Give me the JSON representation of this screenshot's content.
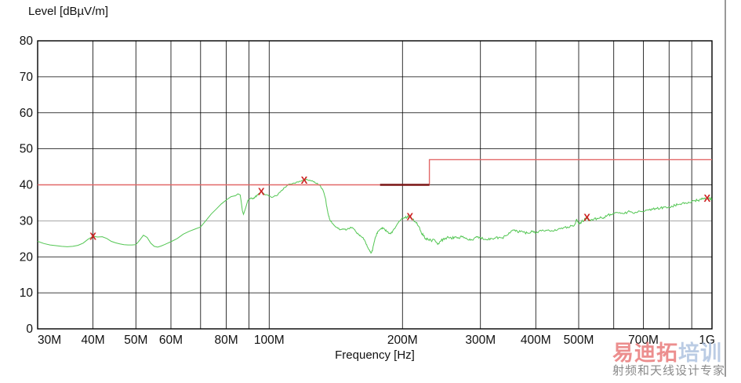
{
  "chart": {
    "y_axis_title": "Level [dBµV/m]",
    "x_axis_title": "Frequency [Hz]"
  },
  "axes": {
    "x": {
      "scale": "log",
      "unit": "MHz",
      "min": 30,
      "max": 1000,
      "ticks": [
        {
          "f": 30,
          "label": "30M"
        },
        {
          "f": 40,
          "label": "40M"
        },
        {
          "f": 50,
          "label": "50M"
        },
        {
          "f": 60,
          "label": "60M"
        },
        {
          "f": 80,
          "label": "80M"
        },
        {
          "f": 100,
          "label": "100M"
        },
        {
          "f": 200,
          "label": "200M"
        },
        {
          "f": 300,
          "label": "300M"
        },
        {
          "f": 400,
          "label": "400M"
        },
        {
          "f": 500,
          "label": "500M"
        },
        {
          "f": 700,
          "label": "700M"
        },
        {
          "f": 1000,
          "label": "1G"
        }
      ],
      "minor_gridlines": [
        70,
        90,
        600,
        800,
        900
      ]
    },
    "y": {
      "min": 0,
      "max": 80,
      "ticks": [
        {
          "v": 0,
          "label": "0"
        },
        {
          "v": 10,
          "label": "10"
        },
        {
          "v": 20,
          "label": "20"
        },
        {
          "v": 30,
          "label": "30"
        },
        {
          "v": 40,
          "label": "40"
        },
        {
          "v": 50,
          "label": "50"
        },
        {
          "v": 60,
          "label": "60"
        },
        {
          "v": 70,
          "label": "70"
        },
        {
          "v": 80,
          "label": "80"
        }
      ],
      "gray_gridline_value": 30
    }
  },
  "chart_data": {
    "type": "line",
    "title": "Level [dBµV/m]",
    "xlabel": "Frequency [Hz]",
    "ylabel": "Level [dBµV/m]",
    "x_scale": "log",
    "xlim_mhz": [
      30,
      1000
    ],
    "ylim": [
      0,
      80
    ],
    "grid": "on",
    "series": [
      {
        "name": "measured-emissions-trace",
        "color": "#53c653",
        "width": 1,
        "points": [
          [
            30,
            24.3
          ],
          [
            31,
            23.7
          ],
          [
            32,
            23.3
          ],
          [
            33,
            23.1
          ],
          [
            34,
            22.9
          ],
          [
            35,
            22.8
          ],
          [
            36,
            22.9
          ],
          [
            37,
            23.2
          ],
          [
            38,
            23.8
          ],
          [
            39,
            24.9
          ],
          [
            40,
            25.7
          ],
          [
            41,
            25.5
          ],
          [
            42,
            25.6
          ],
          [
            43,
            25.1
          ],
          [
            44,
            24.3
          ],
          [
            45,
            23.9
          ],
          [
            46,
            23.6
          ],
          [
            47,
            23.4
          ],
          [
            48,
            23.3
          ],
          [
            49,
            23.3
          ],
          [
            50,
            23.4
          ],
          [
            51,
            24.6
          ],
          [
            52,
            26.0
          ],
          [
            53,
            25.4
          ],
          [
            54,
            23.8
          ],
          [
            55,
            22.9
          ],
          [
            56,
            22.7
          ],
          [
            57,
            23.0
          ],
          [
            58,
            23.4
          ],
          [
            59,
            23.8
          ],
          [
            60,
            24.2
          ],
          [
            62,
            25.1
          ],
          [
            64,
            26.3
          ],
          [
            66,
            27.1
          ],
          [
            68,
            27.7
          ],
          [
            70,
            28.3
          ],
          [
            72,
            30.1
          ],
          [
            74,
            31.9
          ],
          [
            76,
            33.3
          ],
          [
            78,
            34.7
          ],
          [
            80,
            35.8
          ],
          [
            82,
            36.7
          ],
          [
            84,
            37.0
          ],
          [
            85,
            37.5
          ],
          [
            86,
            37.2
          ],
          [
            86.5,
            35.2
          ],
          [
            87,
            32.8
          ],
          [
            87.5,
            31.8
          ],
          [
            88.5,
            33.6
          ],
          [
            89.5,
            35.7
          ],
          [
            91,
            36.4
          ],
          [
            92,
            36.1
          ],
          [
            93,
            36.6
          ],
          [
            94,
            37.1
          ],
          [
            95,
            37.6
          ],
          [
            96,
            38.2
          ],
          [
            98,
            37.2
          ],
          [
            100,
            36.8
          ],
          [
            102,
            36.6
          ],
          [
            104,
            37.0
          ],
          [
            106,
            38.0
          ],
          [
            108,
            39.2
          ],
          [
            110,
            39.9
          ],
          [
            113,
            40.4
          ],
          [
            116,
            40.8
          ],
          [
            118,
            41.0
          ],
          [
            120,
            41.3
          ],
          [
            122,
            41.4
          ],
          [
            124,
            41.2
          ],
          [
            126,
            40.8
          ],
          [
            128,
            40.4
          ],
          [
            130,
            40.0
          ],
          [
            132,
            38.8
          ],
          [
            134,
            36.2
          ],
          [
            135,
            33.8
          ],
          [
            136,
            31.8
          ],
          [
            137,
            30.4
          ],
          [
            139,
            29.2
          ],
          [
            141,
            28.4
          ],
          [
            143,
            27.9
          ],
          [
            145,
            27.6
          ],
          [
            147,
            27.8
          ],
          [
            149,
            27.4
          ],
          [
            151,
            27.9
          ],
          [
            153,
            28.2
          ],
          [
            155,
            27.8
          ],
          [
            157,
            27.0
          ],
          [
            159,
            26.2
          ],
          [
            161,
            25.7
          ],
          [
            163,
            25.3
          ],
          [
            165,
            24.1
          ],
          [
            167,
            22.6
          ],
          [
            169,
            21.4
          ],
          [
            170,
            21.1
          ],
          [
            171,
            21.7
          ],
          [
            172,
            23.2
          ],
          [
            174,
            25.6
          ],
          [
            176,
            27.1
          ],
          [
            178,
            27.6
          ],
          [
            180,
            28.1
          ],
          [
            182,
            27.8
          ],
          [
            184,
            27.1
          ],
          [
            186,
            26.6
          ],
          [
            188,
            26.4
          ],
          [
            190,
            27.1
          ],
          [
            193,
            28.3
          ],
          [
            196,
            29.6
          ],
          [
            199,
            30.5
          ],
          [
            202,
            30.9
          ],
          [
            205,
            31.0
          ],
          [
            208,
            31.2
          ],
          [
            211,
            30.5
          ],
          [
            214,
            29.7
          ],
          [
            217,
            28.6
          ],
          [
            220,
            27.1
          ],
          [
            223,
            25.8
          ],
          [
            226,
            25.1
          ],
          [
            229,
            24.7
          ],
          [
            232,
            24.5
          ],
          [
            235,
            24.9
          ],
          [
            238,
            24.1
          ],
          [
            241,
            23.7
          ],
          [
            244,
            24.3
          ],
          [
            247,
            24.9
          ],
          [
            250,
            25.2
          ],
          [
            254,
            25.4
          ],
          [
            258,
            25.0
          ],
          [
            262,
            25.5
          ],
          [
            266,
            25.2
          ],
          [
            270,
            25.5
          ],
          [
            275,
            25.3
          ],
          [
            280,
            24.9
          ],
          [
            285,
            24.6
          ],
          [
            290,
            25.1
          ],
          [
            295,
            25.5
          ],
          [
            300,
            25.4
          ],
          [
            306,
            24.8
          ],
          [
            312,
            24.7
          ],
          [
            318,
            25.1
          ],
          [
            324,
            25.2
          ],
          [
            330,
            25.4
          ],
          [
            336,
            25.3
          ],
          [
            342,
            25.8
          ],
          [
            348,
            26.7
          ],
          [
            354,
            27.3
          ],
          [
            360,
            27.1
          ],
          [
            366,
            26.8
          ],
          [
            372,
            27.2
          ],
          [
            378,
            26.7
          ],
          [
            384,
            26.6
          ],
          [
            390,
            26.9
          ],
          [
            396,
            26.8
          ],
          [
            402,
            26.9
          ],
          [
            412,
            27.2
          ],
          [
            422,
            27.4
          ],
          [
            432,
            27.1
          ],
          [
            442,
            27.6
          ],
          [
            452,
            27.9
          ],
          [
            462,
            28.1
          ],
          [
            472,
            28.3
          ],
          [
            482,
            28.6
          ],
          [
            490,
            29.0
          ],
          [
            495,
            30.4
          ],
          [
            500,
            29.2
          ],
          [
            505,
            29.5
          ],
          [
            510,
            29.9
          ],
          [
            515,
            30.3
          ],
          [
            520,
            30.9
          ],
          [
            526,
            30.1
          ],
          [
            532,
            30.0
          ],
          [
            540,
            30.3
          ],
          [
            550,
            30.7
          ],
          [
            560,
            31.1
          ],
          [
            570,
            30.9
          ],
          [
            580,
            31.5
          ],
          [
            590,
            31.8
          ],
          [
            600,
            32.0
          ],
          [
            615,
            32.2
          ],
          [
            630,
            32.0
          ],
          [
            645,
            32.5
          ],
          [
            660,
            32.4
          ],
          [
            675,
            32.3
          ],
          [
            690,
            32.6
          ],
          [
            705,
            32.7
          ],
          [
            720,
            33.0
          ],
          [
            735,
            33.2
          ],
          [
            750,
            33.4
          ],
          [
            765,
            33.6
          ],
          [
            780,
            33.8
          ],
          [
            795,
            33.7
          ],
          [
            810,
            34.1
          ],
          [
            825,
            34.3
          ],
          [
            840,
            34.5
          ],
          [
            855,
            34.8
          ],
          [
            870,
            35.0
          ],
          [
            885,
            35.2
          ],
          [
            900,
            35.4
          ],
          [
            915,
            35.6
          ],
          [
            930,
            35.7
          ],
          [
            945,
            35.9
          ],
          [
            960,
            36.1
          ],
          [
            975,
            36.3
          ],
          [
            990,
            36.0
          ],
          [
            1000,
            36.1
          ]
        ]
      },
      {
        "name": "limit-line",
        "color": "#e26868",
        "width": 1.4,
        "points": [
          [
            30,
            40
          ],
          [
            230,
            40
          ],
          [
            230,
            47
          ],
          [
            1000,
            47
          ]
        ]
      },
      {
        "name": "limit-line-emphasis",
        "color": "#7a1414",
        "width": 2.4,
        "points": [
          [
            178,
            40
          ],
          [
            230,
            40
          ]
        ]
      }
    ],
    "markers": {
      "symbol": "X",
      "color": "#cc2222",
      "points": [
        [
          40,
          25.7
        ],
        [
          96,
          38.2
        ],
        [
          120,
          41.3
        ],
        [
          208,
          31.2
        ],
        [
          522,
          30.9
        ],
        [
          975,
          36.3
        ]
      ]
    },
    "noise": {
      "breakpoints": [
        [
          90,
          0
        ],
        [
          200,
          0.22
        ],
        [
          1001,
          0.38
        ]
      ]
    },
    "legend": "off"
  },
  "artifacts": {
    "page_edge_line_color": "#333333"
  },
  "watermark": {
    "brand_red": "易迪拓",
    "brand_blue": "培训",
    "tagline": "射频和天线设计专家",
    "brand_red_color": "#e76f6f",
    "brand_blue_color": "#a9bedd",
    "tagline_color": "#8a8a8a"
  }
}
